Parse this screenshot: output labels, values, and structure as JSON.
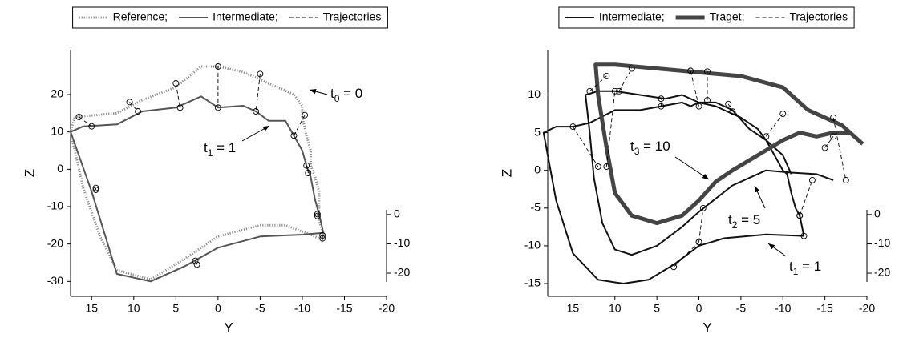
{
  "chart_data": [
    {
      "type": "line",
      "x_label": "Y",
      "y_label": "Z",
      "xlim": [
        17.5,
        -20
      ],
      "xticks": [
        15,
        10,
        5,
        0,
        -5,
        -10,
        -15,
        -20
      ],
      "ylim": [
        -34,
        32
      ],
      "yticks": [
        -30,
        -20,
        -10,
        0,
        10,
        20
      ],
      "y2lim": [
        -23,
        1.6
      ],
      "y2ticks": [
        0,
        -10,
        -20
      ],
      "series": [
        {
          "name": "Reference;",
          "color": "#888888",
          "style": "dotted",
          "x": [
            17,
            12,
            9,
            5,
            2,
            0,
            -3,
            -6,
            -9,
            -10,
            -10,
            -10.5,
            -11,
            -11,
            -11.5,
            -12,
            -12,
            -12,
            -12.5,
            -12.5,
            -11,
            -8,
            -5,
            0,
            4,
            8,
            12,
            14,
            16,
            17.5,
            17
          ],
          "values": [
            14,
            15,
            18.5,
            22,
            27.5,
            27.5,
            26,
            23,
            20,
            17,
            14,
            9,
            5,
            1,
            -2,
            -6,
            -10,
            -14,
            -17,
            -19,
            -17.5,
            -15,
            -15,
            -18,
            -24,
            -29.5,
            -27,
            -18,
            -5,
            10,
            14
          ]
        },
        {
          "name": "Intermediate;",
          "color": "#555555",
          "style": "solid",
          "x": [
            16,
            12,
            9,
            5,
            2,
            0,
            -3,
            -4.5,
            -6,
            -8,
            -9,
            -10,
            -10.5,
            -11,
            -11.5,
            -12,
            -12.5,
            -10,
            -5,
            0,
            4,
            8,
            12,
            15,
            17.5,
            16
          ],
          "values": [
            11.5,
            12,
            15.5,
            16.5,
            19.5,
            16.5,
            17,
            15.5,
            13,
            13,
            9,
            5,
            1,
            -2,
            -8,
            -12,
            -17,
            -17.5,
            -18,
            -21,
            -26,
            -30,
            -28,
            -6,
            10,
            11.5
          ]
        },
        {
          "name": "Trajectories",
          "color": "#000000",
          "style": "dashed",
          "markers": true,
          "x": [
            16.5,
            15,
            null,
            10.5,
            9.5,
            null,
            5,
            4.5,
            null,
            0,
            0,
            null,
            -5,
            -4.5,
            null,
            -10.3,
            -9,
            null,
            -10.5,
            -10.7,
            null,
            -11.8,
            -11.8,
            null,
            -12.4,
            -12.4,
            null,
            2.7,
            2.5,
            null,
            14.5,
            14.5
          ],
          "values": [
            14,
            11.5,
            null,
            18,
            15.5,
            null,
            23,
            16.5,
            null,
            27.5,
            16.5,
            null,
            25.5,
            15.5,
            null,
            14.5,
            9,
            null,
            1,
            -1,
            null,
            -12,
            -12.5,
            null,
            -18.5,
            -17.7,
            null,
            -24.5,
            -25.5,
            null,
            -5,
            -5.5
          ]
        }
      ],
      "annotations": [
        {
          "parts": [
            "t",
            "0",
            " = 0"
          ]
        },
        {
          "parts": [
            "t",
            "1",
            " = 1"
          ]
        }
      ]
    },
    {
      "type": "line",
      "x_label": "Y",
      "y_label": "Z",
      "xlim": [
        18,
        -20
      ],
      "xticks": [
        15,
        10,
        5,
        0,
        -5,
        -10,
        -15,
        -20
      ],
      "ylim": [
        -16.7,
        16
      ],
      "yticks": [
        -15,
        -10,
        -5,
        0,
        5,
        10
      ],
      "y2lim": [
        -23,
        1.6
      ],
      "y2ticks": [
        0,
        -10,
        -20
      ],
      "series": [
        {
          "name": "Intermediate;",
          "color": "#111111",
          "style": "solid",
          "x": [
            -12.5,
            -8,
            -3,
            0,
            3,
            6,
            9,
            12,
            15,
            17,
            18.5,
            17,
            15,
            13,
            10,
            7,
            4.5,
            2,
            1,
            0,
            -2,
            -3,
            -5,
            -7,
            -8,
            -9,
            -10,
            -10.5,
            -11,
            -11.5,
            -12,
            -12.5,
            null,
            -16,
            -14,
            -11,
            -8,
            -4,
            0,
            2,
            5,
            8,
            10,
            11.5,
            12.5,
            13,
            13.5,
            12,
            10,
            7,
            4,
            2,
            0,
            -2,
            -4,
            -6,
            -8,
            -10,
            -11
          ],
          "values": [
            -8.7,
            -8.5,
            -9,
            -10,
            -12.5,
            -14.5,
            -15,
            -14.5,
            -11,
            -4,
            5,
            5.8,
            5.8,
            6.3,
            8,
            8,
            8.5,
            9,
            8.5,
            9,
            8.5,
            8,
            7,
            5.5,
            4,
            2,
            0,
            -0.5,
            -3,
            -5,
            -6,
            -8.7,
            null,
            -1.3,
            -0.5,
            -0.3,
            0,
            -2,
            -5.5,
            -7.5,
            -10,
            -11.2,
            -10.5,
            -7,
            -1,
            5,
            10,
            10.5,
            10.5,
            10,
            9.5,
            10,
            9,
            9,
            8,
            5.5,
            4,
            2,
            -0.5
          ]
        },
        {
          "name": "Traget;",
          "color": "#444444",
          "style": "thick",
          "x": [
            -19.5,
            -18,
            -16,
            -14,
            -12,
            -10,
            -7,
            -4,
            -2,
            0,
            2,
            5,
            8,
            10,
            11,
            12,
            12.3,
            10,
            5,
            0,
            -5,
            -10,
            -13,
            -15,
            -17,
            -19.5
          ],
          "values": [
            3.5,
            5,
            5,
            4.5,
            5,
            4,
            2,
            0,
            -1.5,
            -4,
            -6,
            -7,
            -6,
            -3,
            3,
            10,
            14,
            14,
            13.5,
            13,
            12.5,
            11,
            8,
            7,
            6,
            3.5
          ]
        },
        {
          "name": "Trajectories",
          "color": "#000000",
          "style": "dashed",
          "markers": true,
          "x": [
            15,
            12,
            null,
            13,
            11,
            null,
            11,
            10,
            null,
            9.5,
            8,
            null,
            4.5,
            4.5,
            null,
            0,
            1,
            null,
            -1,
            -1,
            null,
            -4,
            -3.5,
            null,
            -8,
            -10,
            null,
            -12,
            -13.5,
            null,
            -15,
            -16,
            null,
            -16,
            -17.5,
            null,
            3,
            0,
            null,
            0,
            -0.5,
            null,
            -12.5,
            -12
          ],
          "values": [
            5.8,
            0.5,
            null,
            10.5,
            12.5,
            null,
            0.5,
            10.5,
            null,
            10.5,
            13.5,
            null,
            8.5,
            9.5,
            null,
            8.5,
            13.2,
            null,
            9.3,
            13.1,
            null,
            7.8,
            8.8,
            null,
            4.5,
            7.5,
            null,
            -6,
            -1.3,
            null,
            3,
            4.5,
            null,
            7,
            -1.3,
            null,
            -12.8,
            -9.5,
            null,
            -9.5,
            -5,
            null,
            -8.7,
            -6
          ]
        }
      ],
      "annotations": [
        {
          "parts": [
            "t",
            "3",
            " = 10"
          ]
        },
        {
          "parts": [
            "t",
            "2",
            " = 5"
          ]
        },
        {
          "parts": [
            "t",
            "1",
            " = 1"
          ]
        }
      ]
    }
  ]
}
